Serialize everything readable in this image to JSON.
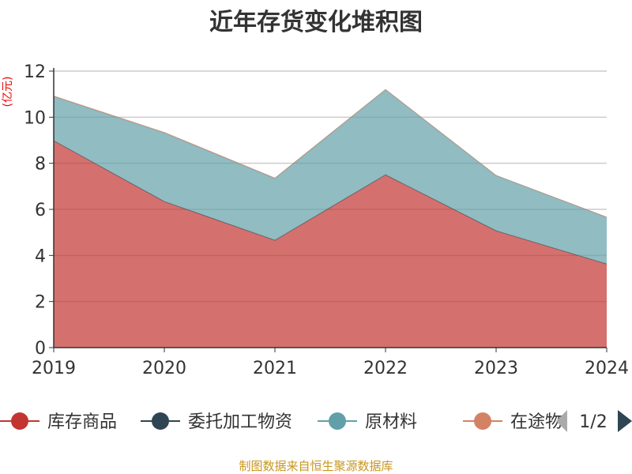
{
  "chart_data": {
    "type": "area",
    "stacked": true,
    "title": "近年存货变化堆积图",
    "ylabel": "(亿元)",
    "xlabel": "",
    "categories": [
      "2019",
      "2020",
      "2021",
      "2022",
      "2023",
      "2024"
    ],
    "ylim": [
      0,
      12
    ],
    "yticks": [
      0,
      2,
      4,
      6,
      8,
      10,
      12
    ],
    "grid": true,
    "legend_position": "bottom",
    "legend_page": "1/2",
    "series": [
      {
        "name": "库存商品",
        "color": "#c23531",
        "values": [
          8.98,
          6.34,
          4.66,
          7.5,
          5.07,
          3.63
        ]
      },
      {
        "name": "委托加工物资",
        "color": "#2f4554",
        "values": [
          0,
          0,
          0,
          0,
          0,
          0
        ]
      },
      {
        "name": "原材料",
        "color": "#61a0a8",
        "values": [
          1.92,
          2.98,
          2.68,
          3.7,
          2.4,
          2.03
        ]
      },
      {
        "name": "在途物",
        "color": "#d48265",
        "values": [
          0.02,
          0.02,
          0.02,
          0,
          0,
          0
        ]
      }
    ]
  },
  "footer": "制图数据来自恒生聚源数据库"
}
